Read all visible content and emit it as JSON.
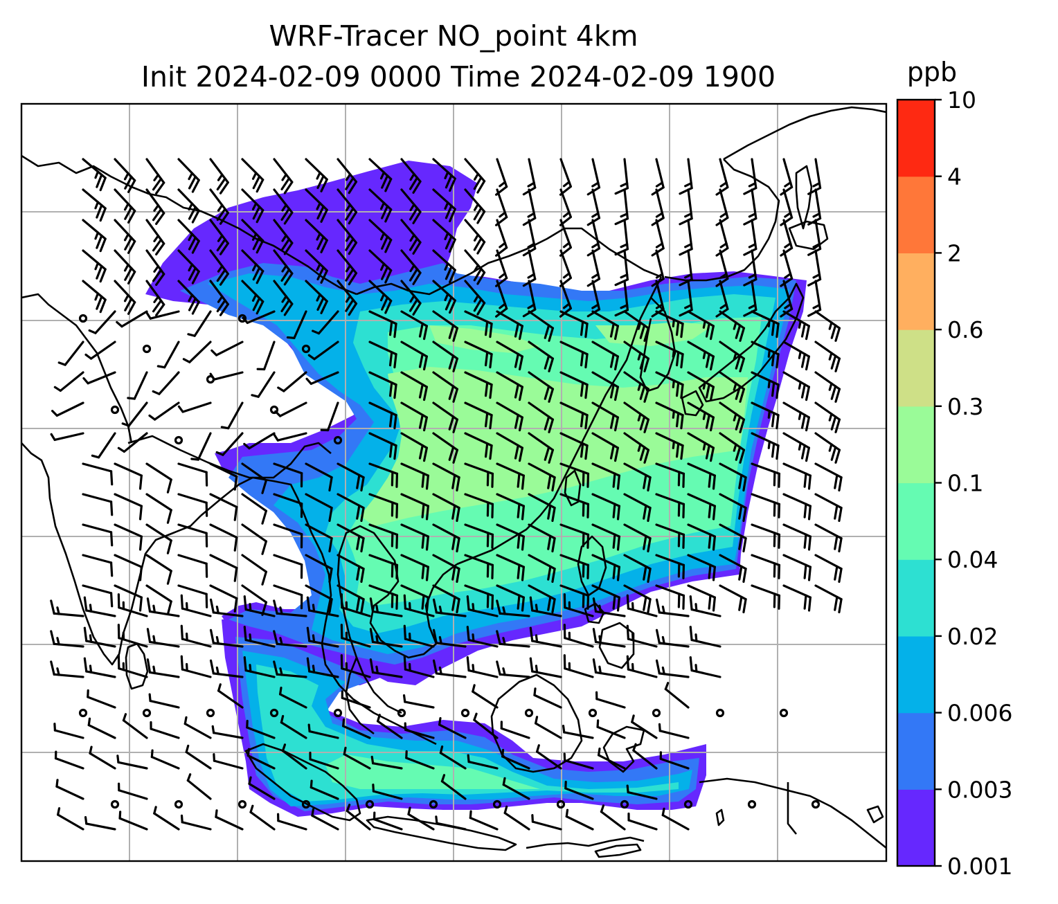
{
  "title": {
    "line1": "WRF-Tracer NO_point 4km",
    "line2": "Init 2024-02-09 0000 Time 2024-02-09 1900"
  },
  "colorbar": {
    "unit": "ppb",
    "levels": [
      "0.001",
      "0.003",
      "0.006",
      "0.02",
      "0.04",
      "0.1",
      "0.3",
      "0.6",
      "2",
      "4",
      "10"
    ],
    "colors": [
      "#6628fe",
      "#3378f6",
      "#04b1e9",
      "#2de0d2",
      "#65fbb2",
      "#9afb98",
      "#cee087",
      "#ffaf5f",
      "#ff7739",
      "#fe2912"
    ]
  },
  "map": {
    "gridlines": true,
    "grid_color": "#b0b0b0",
    "coastline_color": "#000000",
    "wind_barb_color": "#000000"
  }
}
